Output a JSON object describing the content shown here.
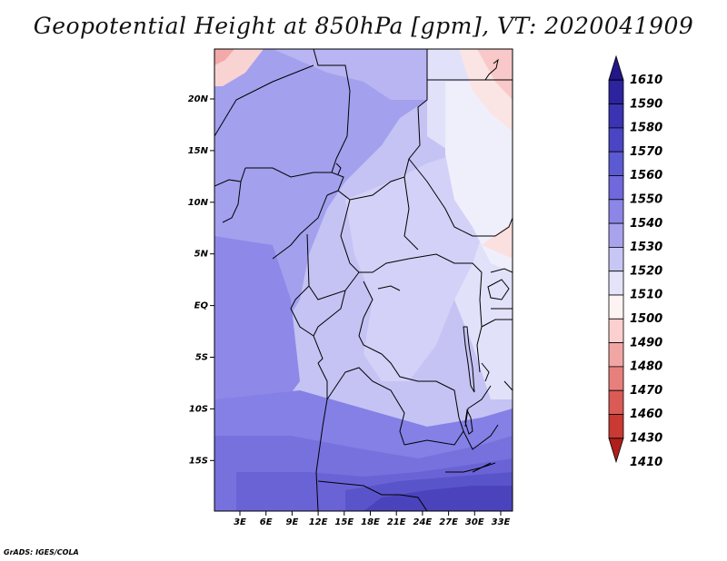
{
  "title": "Geopotential Height at 850hPa [gpm], VT: 2020041909",
  "credit": "GrADS: IGES/COLA",
  "map": {
    "lat_ticks": [
      "20N",
      "15N",
      "10N",
      "5N",
      "EQ",
      "5S",
      "10S",
      "15S"
    ],
    "lon_ticks": [
      "3E",
      "6E",
      "9E",
      "12E",
      "15E",
      "18E",
      "21E",
      "24E",
      "27E",
      "30E",
      "33E"
    ]
  },
  "colorbar": {
    "levels": [
      "1610",
      "1590",
      "1580",
      "1570",
      "1560",
      "1550",
      "1540",
      "1530",
      "1520",
      "1510",
      "1500",
      "1490",
      "1480",
      "1470",
      "1460",
      "1430",
      "1410"
    ],
    "colors": [
      "#221688",
      "#2d239e",
      "#3a33b2",
      "#4a45c4",
      "#5c5ad2",
      "#7068dc",
      "#8c86e6",
      "#a9a3ee",
      "#c8c6f4",
      "#e4e3fa",
      "#fdf3f3",
      "#fbd0cf",
      "#f2a6a4",
      "#e7807c",
      "#da5a55",
      "#c93a33",
      "#b01f1b"
    ]
  }
}
